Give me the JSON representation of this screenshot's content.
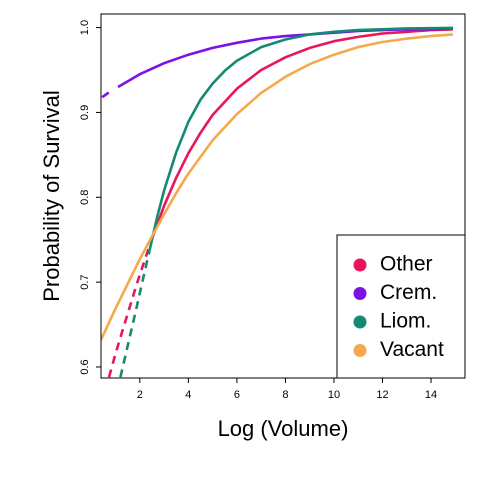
{
  "chart_data": {
    "type": "line",
    "title": "",
    "xlabel": "Log (Volume)",
    "ylabel": "Probability of Survival",
    "xlim": [
      0.4,
      15.4
    ],
    "ylim": [
      0.587,
      1.016
    ],
    "xticks": [
      2,
      4,
      6,
      8,
      10,
      12,
      14
    ],
    "yticks": [
      0.6,
      0.7,
      0.8,
      0.9,
      1.0
    ],
    "ytick_labels": [
      "0.6",
      "0.7",
      "0.8",
      "0.9",
      "1.0"
    ],
    "grid": false,
    "legend_position": "bottom-right",
    "series": [
      {
        "name": "Other",
        "color": "#E8175D",
        "dashed_x": [
          0.73,
          1.0,
          1.3,
          1.6,
          1.9,
          2.2,
          2.5
        ],
        "dashed_y": [
          0.588,
          0.616,
          0.644,
          0.672,
          0.7,
          0.726,
          0.751
        ],
        "solid_x": [
          2.5,
          3.0,
          3.5,
          4.0,
          4.5,
          5.0,
          6.0,
          7.0,
          8.0,
          9.0,
          10.0,
          11.0,
          12.0,
          13.0,
          14.0,
          14.9
        ],
        "solid_y": [
          0.751,
          0.79,
          0.823,
          0.852,
          0.876,
          0.897,
          0.928,
          0.95,
          0.965,
          0.976,
          0.984,
          0.989,
          0.993,
          0.995,
          0.997,
          0.998
        ]
      },
      {
        "name": "Crem.",
        "color": "#7B12E6",
        "dashed_x": [
          0.45,
          0.9
        ],
        "dashed_y": [
          0.918,
          0.927
        ],
        "solid_x": [
          1.1,
          2.0,
          3.0,
          4.0,
          5.0,
          6.0,
          7.0,
          8.0,
          9.0,
          10.0,
          11.0,
          12.0,
          13.0,
          14.0,
          14.9
        ],
        "solid_y": [
          0.93,
          0.945,
          0.958,
          0.968,
          0.976,
          0.982,
          0.987,
          0.99,
          0.992,
          0.994,
          0.996,
          0.997,
          0.998,
          0.998,
          0.999
        ]
      },
      {
        "name": "Liom.",
        "color": "#148A74",
        "dashed_x": [
          1.2,
          1.5,
          1.8,
          2.1,
          2.4
        ],
        "dashed_y": [
          0.588,
          0.625,
          0.662,
          0.7,
          0.737
        ],
        "solid_x": [
          2.4,
          2.7,
          3.0,
          3.5,
          4.0,
          4.5,
          5.0,
          5.5,
          6.0,
          7.0,
          8.0,
          9.0,
          10.0,
          11.0,
          12.0,
          13.0,
          14.0,
          14.9
        ],
        "solid_y": [
          0.737,
          0.775,
          0.808,
          0.853,
          0.889,
          0.915,
          0.934,
          0.949,
          0.961,
          0.977,
          0.986,
          0.992,
          0.995,
          0.997,
          0.998,
          0.999,
          0.9993,
          0.9996
        ]
      },
      {
        "name": "Vacant",
        "color": "#F5A94A",
        "dashed_x": [],
        "dashed_y": [],
        "solid_x": [
          0.4,
          1.0,
          1.5,
          2.0,
          2.5,
          3.0,
          3.5,
          4.0,
          5.0,
          6.0,
          7.0,
          8.0,
          9.0,
          10.0,
          11.0,
          12.0,
          13.0,
          14.0,
          14.9
        ],
        "solid_y": [
          0.632,
          0.669,
          0.698,
          0.727,
          0.754,
          0.78,
          0.805,
          0.828,
          0.867,
          0.898,
          0.923,
          0.942,
          0.957,
          0.968,
          0.977,
          0.983,
          0.987,
          0.99,
          0.992
        ]
      }
    ]
  }
}
